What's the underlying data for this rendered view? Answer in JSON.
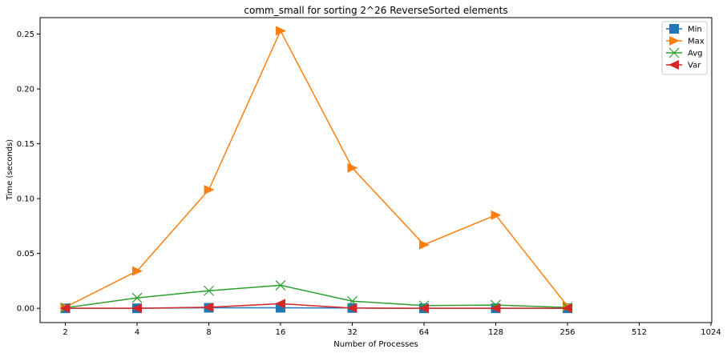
{
  "chart_data": {
    "type": "line",
    "title": "comm_small for sorting 2^26 ReverseSorted elements",
    "xlabel": "Number of Processes",
    "ylabel": "Time (seconds)",
    "x_scale": "log2",
    "x_ticks": [
      2,
      4,
      8,
      16,
      32,
      64,
      128,
      256,
      512,
      1024
    ],
    "x_tick_labels": [
      "2",
      "4",
      "8",
      "16",
      "32",
      "64",
      "128",
      "256",
      "512",
      "1024"
    ],
    "xlim": [
      2,
      1024
    ],
    "ylim": [
      -0.013,
      0.265
    ],
    "y_ticks": [
      0.0,
      0.05,
      0.1,
      0.15,
      0.2,
      0.25
    ],
    "y_tick_labels": [
      "0.00",
      "0.05",
      "0.10",
      "0.15",
      "0.20",
      "0.25"
    ],
    "grid": false,
    "legend_position": "top-right",
    "x": [
      2,
      4,
      8,
      16,
      32,
      64,
      128,
      256
    ],
    "series": [
      {
        "name": "Min",
        "color": "#1f77b4",
        "marker": "square",
        "values": [
          0.0,
          0.0,
          0.0005,
          0.0005,
          0.0003,
          0.0,
          0.0,
          0.0
        ]
      },
      {
        "name": "Max",
        "color": "#ff7f0e",
        "marker": "triangle-right",
        "values": [
          0.001,
          0.034,
          0.108,
          0.253,
          0.128,
          0.058,
          0.085,
          0.002
        ]
      },
      {
        "name": "Avg",
        "color": "#2ca02c",
        "marker": "x",
        "values": [
          0.0005,
          0.0095,
          0.016,
          0.021,
          0.0065,
          0.0025,
          0.003,
          0.0008
        ]
      },
      {
        "name": "Var",
        "color": "#d62728",
        "marker": "triangle-left",
        "values": [
          0.0,
          0.0,
          0.001,
          0.0042,
          0.0002,
          0.0,
          0.0,
          0.0
        ]
      }
    ]
  }
}
